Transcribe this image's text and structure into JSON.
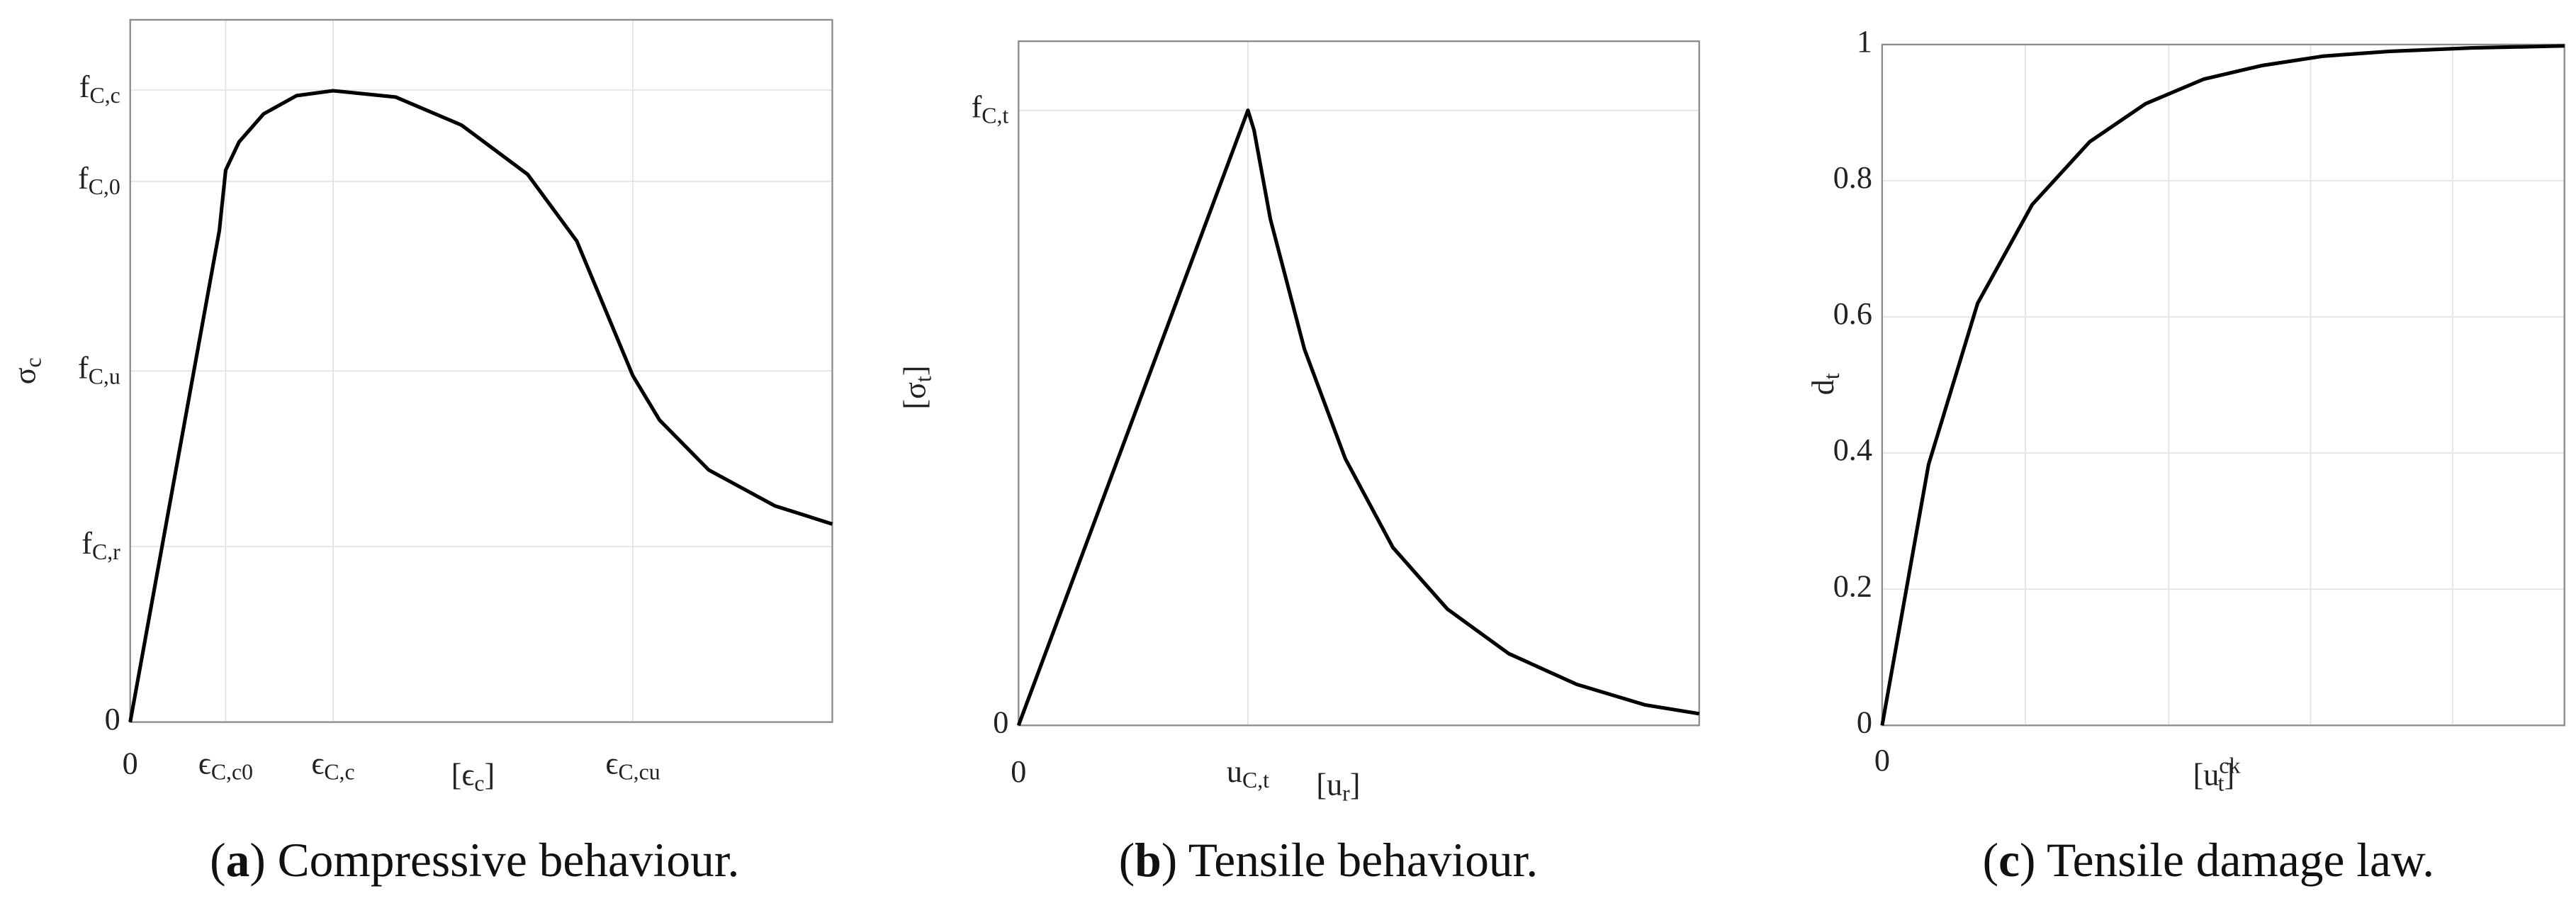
{
  "chart_data": [
    {
      "type": "line",
      "x": [
        0,
        0.127,
        0.136,
        0.155,
        0.19,
        0.237,
        0.289,
        0.378,
        0.472,
        0.566,
        0.636,
        0.716,
        0.754,
        0.824,
        0.918,
        1
      ],
      "values": [
        0,
        0.7,
        0.786,
        0.826,
        0.866,
        0.892,
        0.899,
        0.89,
        0.85,
        0.78,
        0.685,
        0.493,
        0.43,
        0.359,
        0.308,
        0.282
      ],
      "color": "#000000",
      "xlim": [
        0,
        1
      ],
      "ylim": [
        0,
        1
      ],
      "xticks": [
        0,
        {
          "value": 0.136,
          "label": [
            "ϵ",
            {
              "sub": "C,c0"
            }
          ]
        },
        {
          "value": 0.289,
          "label": [
            "ϵ",
            {
              "sub": "C,c"
            }
          ]
        },
        {
          "value": 0.716,
          "label": [
            "ϵ",
            {
              "sub": "C,cu"
            }
          ]
        }
      ],
      "yticks": [
        0,
        {
          "value": 0.25,
          "label": [
            "f",
            {
              "sub": "C,r"
            }
          ]
        },
        {
          "value": 0.5,
          "label": [
            "f",
            {
              "sub": "C,u"
            }
          ]
        },
        {
          "value": 0.77,
          "label": [
            "f",
            {
              "sub": "C,0"
            }
          ]
        },
        {
          "value": 0.9,
          "label": [
            "f",
            {
              "sub": "C,c"
            }
          ]
        }
      ],
      "xlabel": [
        "[ϵ",
        {
          "sub": "c"
        },
        "]"
      ],
      "ylabel": [
        "σ",
        {
          "sub": "c"
        }
      ],
      "grid": true,
      "caption": [
        "(",
        "a",
        ") Compressive behaviour."
      ]
    },
    {
      "type": "line",
      "x": [
        0,
        0.337,
        0.346,
        0.37,
        0.42,
        0.48,
        0.55,
        0.63,
        0.72,
        0.82,
        0.92,
        1
      ],
      "values": [
        0,
        0.899,
        0.87,
        0.74,
        0.55,
        0.39,
        0.26,
        0.17,
        0.105,
        0.06,
        0.03,
        0.017
      ],
      "color": "#000000",
      "xlim": [
        0,
        1
      ],
      "ylim": [
        0,
        1
      ],
      "xticks": [
        0,
        {
          "value": 0.337,
          "label": [
            "u",
            {
              "sub": "C,t"
            }
          ]
        }
      ],
      "yticks": [
        0,
        {
          "value": 0.899,
          "label": [
            "f",
            {
              "sub": "C,t"
            }
          ]
        }
      ],
      "xlabel": [
        "[u",
        {
          "sub": "r"
        },
        "]"
      ],
      "ylabel": [
        "[σ",
        {
          "sub": "t"
        },
        "]"
      ],
      "grid": true,
      "caption": [
        "(",
        "b",
        ") Tensile behaviour."
      ]
    },
    {
      "type": "line",
      "x": [
        0,
        0.068,
        0.14,
        0.22,
        0.304,
        0.386,
        0.471,
        0.556,
        0.647,
        0.744,
        0.865,
        1
      ],
      "values": [
        0,
        0.383,
        0.62,
        0.765,
        0.857,
        0.913,
        0.949,
        0.969,
        0.983,
        0.99,
        0.995,
        0.998
      ],
      "color": "#000000",
      "xlim": [
        0,
        1
      ],
      "ylim": [
        0,
        1
      ],
      "xticks": [
        0,
        {
          "value": 0.21,
          "label": null
        },
        {
          "value": 0.42,
          "label": null
        },
        {
          "value": 0.628,
          "label": null
        },
        {
          "value": 0.836,
          "label": null
        }
      ],
      "yticks": [
        0,
        0.2,
        0.4,
        0.6,
        0.8,
        1
      ],
      "xlabel": [
        "[u",
        {
          "sup": "ck",
          "sub": "t"
        },
        "]"
      ],
      "ylabel": [
        "d",
        {
          "sub": "t"
        }
      ],
      "grid": true,
      "caption": [
        "(",
        "c",
        ") Tensile damage law."
      ]
    }
  ]
}
